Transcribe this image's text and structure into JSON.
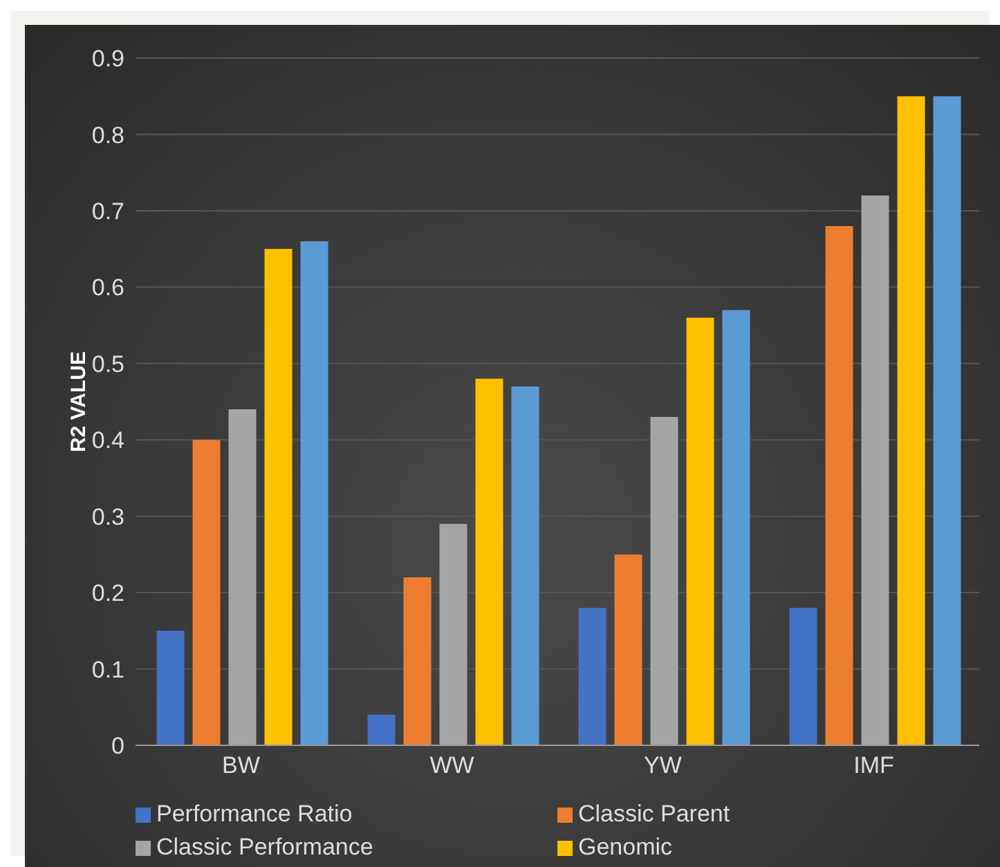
{
  "chart_data": {
    "type": "bar",
    "ylabel": "R2 VALUE",
    "categories": [
      "BW",
      "WW",
      "YW",
      "IMF"
    ],
    "series": [
      {
        "name": "Performance Ratio",
        "color": "#4472c4",
        "values": [
          0.15,
          0.04,
          0.18,
          0.18
        ]
      },
      {
        "name": "Classic Parent",
        "color": "#ed7d31",
        "values": [
          0.4,
          0.22,
          0.25,
          0.68
        ]
      },
      {
        "name": "Classic Performance",
        "color": "#a5a5a5",
        "values": [
          0.44,
          0.29,
          0.43,
          0.72
        ]
      },
      {
        "name": "Genomic",
        "color": "#ffc000",
        "values": [
          0.65,
          0.48,
          0.56,
          0.85
        ]
      },
      {
        "color": "#5b9bd5",
        "values": [
          0.66,
          0.47,
          0.57,
          0.85
        ]
      }
    ],
    "ylim": [
      0,
      0.9
    ],
    "yticks": [
      0,
      0.1,
      0.2,
      0.3,
      0.4,
      0.5,
      0.6,
      0.7,
      0.8,
      0.9
    ],
    "grid": "y",
    "legend": "bottom"
  }
}
